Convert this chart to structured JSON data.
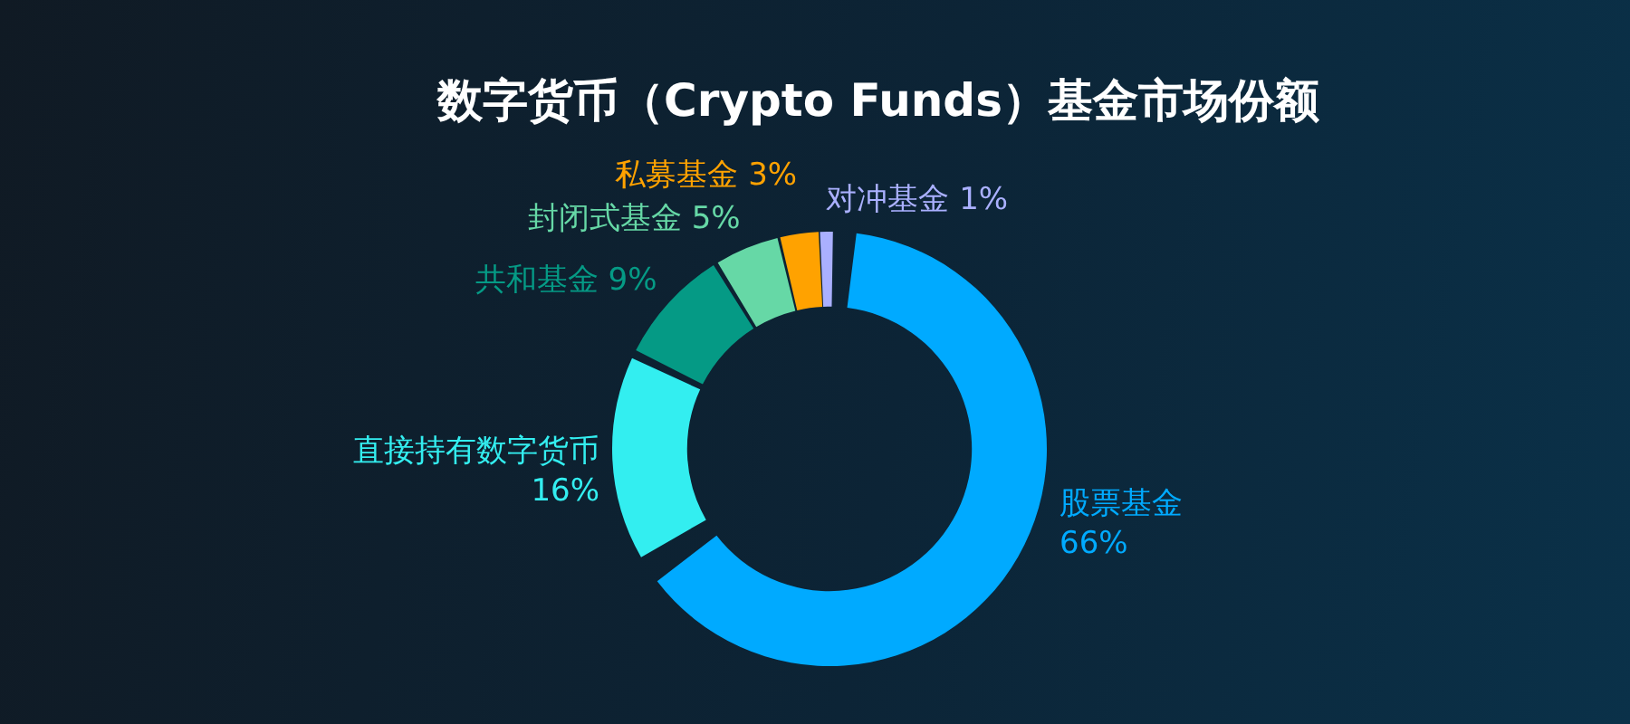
{
  "chart_data": {
    "type": "donut",
    "title": "数字货币（Crypto Funds）基金市场份额",
    "categories": [
      "股票基金",
      "直接持有数字货币",
      "共和基金",
      "封闭式基金",
      "私募基金",
      "对冲基金"
    ],
    "values": [
      66,
      16,
      9,
      5,
      3,
      1
    ],
    "colors": [
      "#00aaff",
      "#33eef0",
      "#059a85",
      "#66d8a6",
      "#ffa200",
      "#aab0ff"
    ],
    "value_labels": [
      "66%",
      "16%",
      "9%",
      "5%",
      "3%",
      "1%"
    ],
    "legend": false
  }
}
